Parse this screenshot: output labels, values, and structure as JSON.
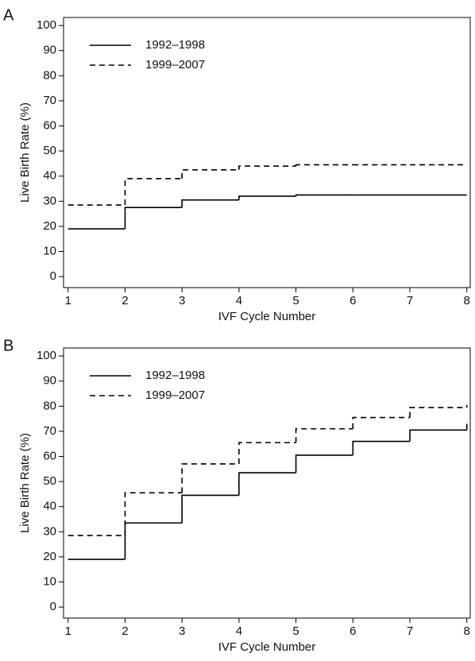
{
  "chart_data": [
    {
      "type": "step",
      "panel": "A",
      "xlabel": "IVF Cycle Number",
      "ylabel": "Live Birth Rate (%)",
      "x": [
        1,
        2,
        3,
        4,
        5,
        6,
        7,
        8
      ],
      "series": [
        {
          "name": "1992–1998",
          "color": "#000000",
          "linestyle": "solid",
          "values": [
            19,
            27.5,
            30.5,
            32,
            32.5,
            32.5,
            32.5,
            32.5
          ]
        },
        {
          "name": "1999–2007",
          "color": "#000000",
          "linestyle": "dashed",
          "values": [
            28.5,
            39,
            42.5,
            44,
            44.5,
            44.5,
            44.5,
            44.5
          ]
        }
      ],
      "xlim": [
        0.92,
        8.06
      ],
      "xticks": [
        1,
        2,
        3,
        4,
        5,
        6,
        7,
        8
      ],
      "ylim": [
        -4.4,
        103.2
      ],
      "yticks": [
        0,
        10,
        20,
        30,
        40,
        50,
        60,
        70,
        80,
        90,
        100
      ],
      "legend": "upper left"
    },
    {
      "type": "step",
      "panel": "B",
      "xlabel": "IVF Cycle Number",
      "ylabel": "Live Birth Rate (%)",
      "x": [
        1,
        2,
        3,
        4,
        5,
        6,
        7,
        8
      ],
      "series": [
        {
          "name": "1992–1998",
          "color": "#000000",
          "linestyle": "solid",
          "values": [
            19,
            33.5,
            44.5,
            53.5,
            60.5,
            66,
            70.5,
            73
          ]
        },
        {
          "name": "1999–2007",
          "color": "#000000",
          "linestyle": "dashed",
          "values": [
            28.5,
            45.5,
            57,
            65.5,
            71,
            75.5,
            79.5,
            80.5
          ]
        }
      ],
      "xlim": [
        0.92,
        8.06
      ],
      "xticks": [
        1,
        2,
        3,
        4,
        5,
        6,
        7,
        8
      ],
      "ylim": [
        -4.4,
        103.2
      ],
      "yticks": [
        0,
        10,
        20,
        30,
        40,
        50,
        60,
        70,
        80,
        90,
        100
      ],
      "legend": "upper left"
    }
  ]
}
